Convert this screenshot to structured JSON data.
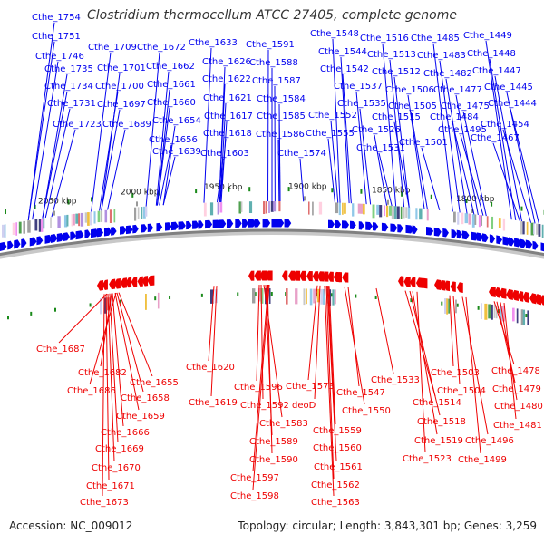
{
  "title": "Clostridium thermocellum ATCC 27405, complete genome",
  "footer": {
    "accession": "Accession: NC_009012",
    "summary": "Topology: circular; Length: 3,843,301 bp; Genes: 3,259"
  },
  "colors": {
    "forward_strand": "#0000ee",
    "reverse_strand": "#ee0000",
    "feature_tick": "#1a8a1a",
    "backbone": "#808080"
  },
  "kbp_labels": [
    "2050 kbp",
    "2000 kbp",
    "1950 kbp",
    "1900 kbp",
    "1850 kbp",
    "1800 kbp"
  ],
  "top_labels": [
    "Cthe_1754",
    "Cthe_1751",
    "Cthe_1746",
    "Cthe_1735",
    "Cthe_1734",
    "Cthe_1731",
    "Cthe_1723",
    "Cthe_1709",
    "Cthe_1701",
    "Cthe_1700",
    "Cthe_1697",
    "Cthe_1689",
    "Cthe_1672",
    "Cthe_1662",
    "Cthe_1661",
    "Cthe_1660",
    "Cthe_1654",
    "Cthe_1656",
    "Cthe_1639",
    "Cthe_1633",
    "Cthe_1626",
    "Cthe_1622",
    "Cthe_1621",
    "Cthe_1617",
    "Cthe_1618",
    "Cthe_1603",
    "Cthe_1591",
    "Cthe_1588",
    "Cthe_1587",
    "Cthe_1584",
    "Cthe_1585",
    "Cthe_1586",
    "Cthe_1574",
    "Cthe_1548",
    "Cthe_1544",
    "Cthe_1542",
    "Cthe_1537",
    "Cthe_1535",
    "Cthe_1552",
    "Cthe_1555",
    "Cthe_1526",
    "Cthe_1531",
    "Cthe_1516",
    "Cthe_1513",
    "Cthe_1512",
    "Cthe_1506",
    "Cthe_1505",
    "Cthe_1515",
    "Cthe_1501",
    "Cthe_1485",
    "Cthe_1483",
    "Cthe_1482",
    "Cthe_1477",
    "Cthe_1475",
    "Cthe_1484",
    "Cthe_1495",
    "Cthe_1449",
    "Cthe_1448",
    "Cthe_1447",
    "Cthe_1445",
    "Cthe_1444",
    "Cthe_1454",
    "Cthe_1467"
  ],
  "bottom_labels": [
    "Cthe_1687",
    "Cthe_1682",
    "Cthe_1686",
    "Cthe_1655",
    "Cthe_1658",
    "Cthe_1659",
    "Cthe_1666",
    "Cthe_1669",
    "Cthe_1670",
    "Cthe_1671",
    "Cthe_1673",
    "Cthe_1620",
    "Cthe_1619",
    "Cthe_1596",
    "Cthe_1592",
    "Cthe_1583",
    "Cthe_1589",
    "Cthe_1590",
    "Cthe_1597",
    "Cthe_1598",
    "Cthe_1573",
    "deoD",
    "Cthe_1547",
    "Cthe_1550",
    "Cthe_1559",
    "Cthe_1560",
    "Cthe_1561",
    "Cthe_1562",
    "Cthe_1563",
    "Cthe_1533",
    "Cthe_1514",
    "Cthe_1518",
    "Cthe_1519",
    "Cthe_1523",
    "Cthe_1503",
    "Cthe_1504",
    "Cthe_1496",
    "Cthe_1499",
    "Cthe_1478",
    "Cthe_1479",
    "Cthe_1480",
    "Cthe_1481"
  ]
}
